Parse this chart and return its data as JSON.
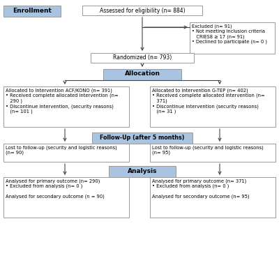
{
  "background": "#ffffff",
  "box_border": "#999999",
  "blue_fill": "#a8c4e0",
  "white_fill": "#ffffff",
  "text_color": "#000000",
  "arrow_color": "#444444",
  "enrollment_label": "Enrollment",
  "allocation_label": "Allocation",
  "followup_label": "Follow-Up (after 5 months)",
  "analysis_label": "Analysis",
  "assessed_text": "Assessed for eligibility (n= 884)",
  "excluded_text": "Excluded (n= 91)\n• Not meeting inclusion criteria\n   CRIES8 ≥ 17 (n= 91)\n• Declined to participate (n= 0 )",
  "randomized_text": "Randomized (n= 793)",
  "left_alloc_text": "Allocated to intervention ACF/KONO (n= 391)\n• Received complete allocated intervention (n=\n   290 )\n• Discontinue intervention, (security reasons)\n   (n= 101 )",
  "right_alloc_text": "Allocated to intervention G-TEP (n= 402)\n• Received complete allocated intervention (n=\n   371)\n• Discontinue intervention (security reasons)\n   (n= 31 )",
  "left_followup_text": "Lost to follow-up (security and logistic reasons)\n(n= 90)",
  "right_followup_text": "Lost to follow-up (security and logistic reasons)\n(n= 95)",
  "left_analysis_text": "Analysed for primary outcome (n= 290)\n• Excluded from analysis (n= 0 )\n\nAnalysed for secondary outcome (n = 90)",
  "right_analysis_text": "Analysed for primary outcome (n= 371)\n• Excluded from analysis (n= 0 )\n\nAnalysed for secondary outcome (n= 95)"
}
